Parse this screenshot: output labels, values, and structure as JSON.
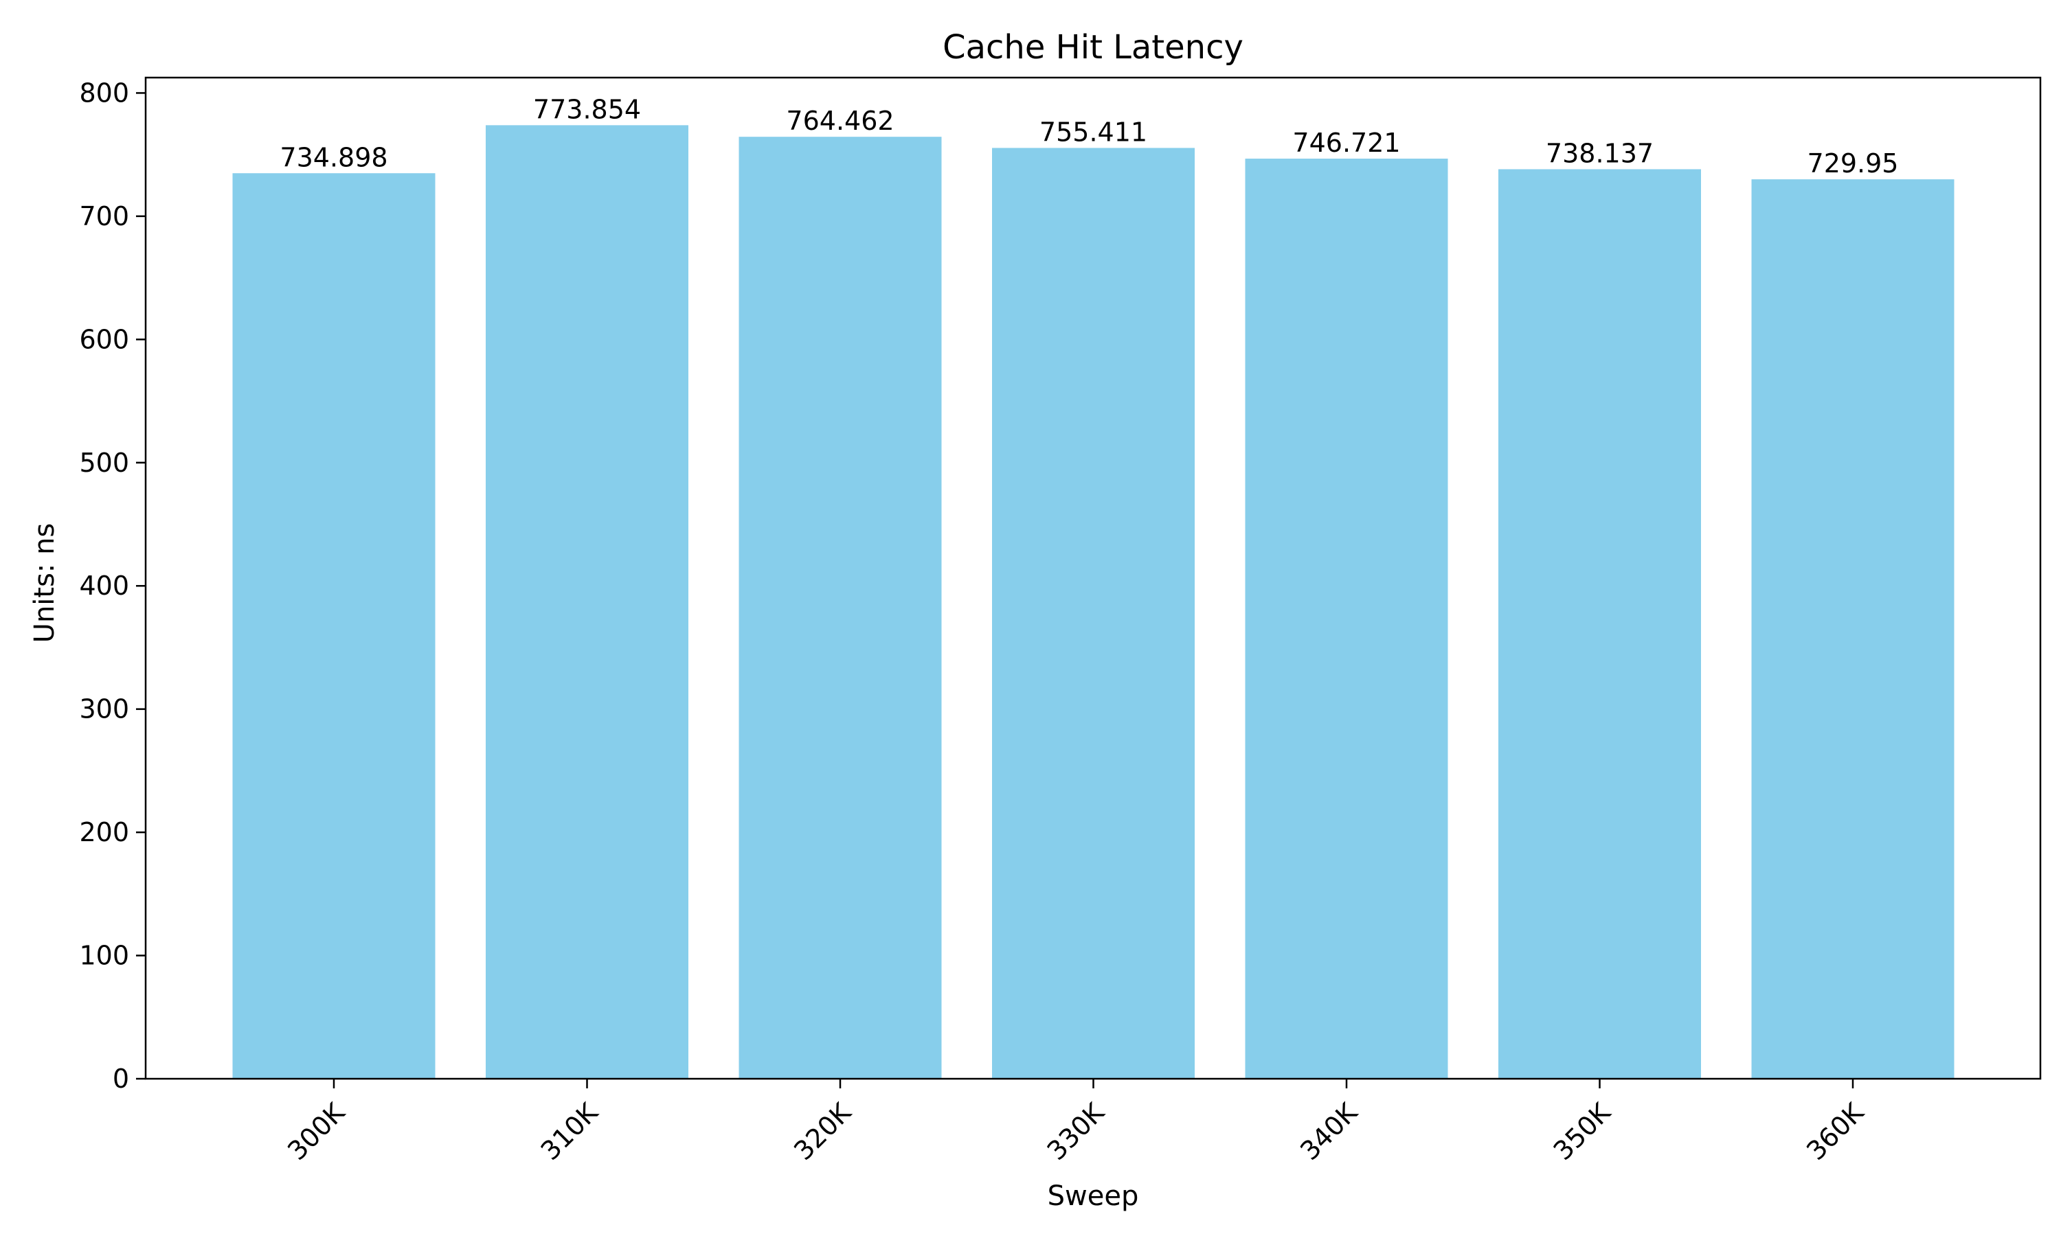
{
  "chart_data": {
    "type": "bar",
    "title": "Cache Hit Latency",
    "xlabel": "Sweep",
    "ylabel": "Units: ns",
    "categories": [
      "300K",
      "310K",
      "320K",
      "330K",
      "340K",
      "350K",
      "360K"
    ],
    "values": [
      734.898,
      773.854,
      764.462,
      755.411,
      746.721,
      738.137,
      729.95
    ],
    "value_labels": [
      "734.898",
      "773.854",
      "764.462",
      "755.411",
      "746.721",
      "738.137",
      "729.95"
    ],
    "ylim": [
      0,
      812.5
    ],
    "yticks": [
      0,
      100,
      200,
      300,
      400,
      500,
      600,
      700,
      800
    ],
    "bar_color": "#87CEEB",
    "grid": false,
    "legend": "none"
  }
}
